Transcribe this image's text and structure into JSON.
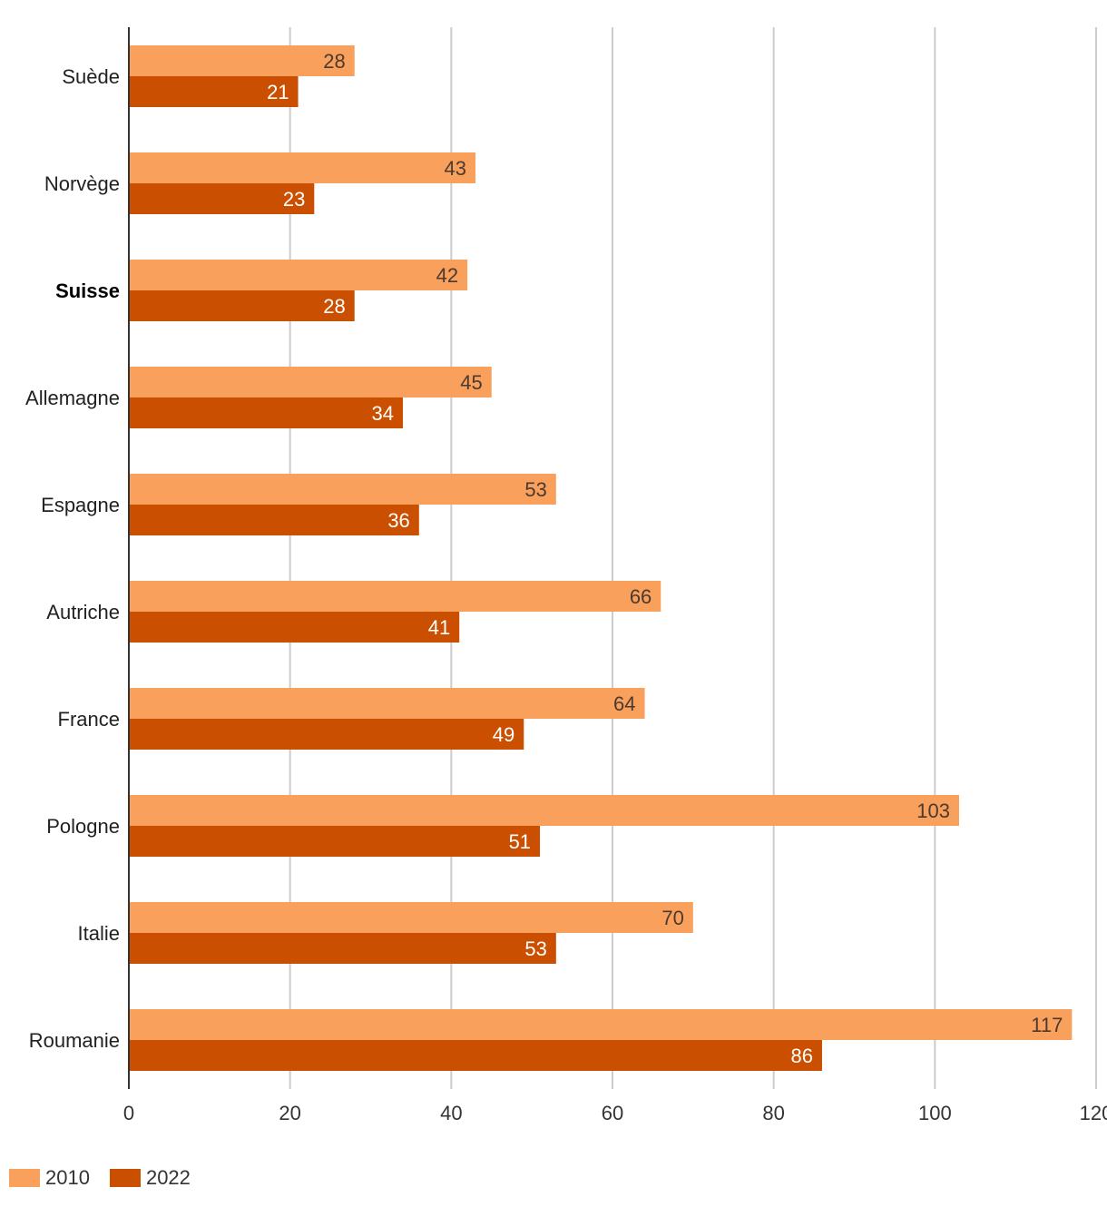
{
  "chart_data": {
    "type": "bar",
    "orientation": "horizontal",
    "categories": [
      "Suède",
      "Norvège",
      "Suisse",
      "Allemagne",
      "Espagne",
      "Autriche",
      "France",
      "Pologne",
      "Italie",
      "Roumanie"
    ],
    "highlight_category": "Suisse",
    "series": [
      {
        "name": "2010",
        "color": "#f9a05c",
        "values": [
          28,
          43,
          42,
          45,
          53,
          66,
          64,
          103,
          70,
          117
        ]
      },
      {
        "name": "2022",
        "color": "#cb4f00",
        "values": [
          21,
          23,
          28,
          34,
          36,
          41,
          49,
          51,
          53,
          86
        ]
      }
    ],
    "xlim": [
      0,
      120
    ],
    "xticks": [
      0,
      20,
      40,
      60,
      80,
      100,
      120
    ],
    "grid": "vertical",
    "legend_position": "bottom-left",
    "title": "",
    "xlabel": "",
    "ylabel": ""
  }
}
